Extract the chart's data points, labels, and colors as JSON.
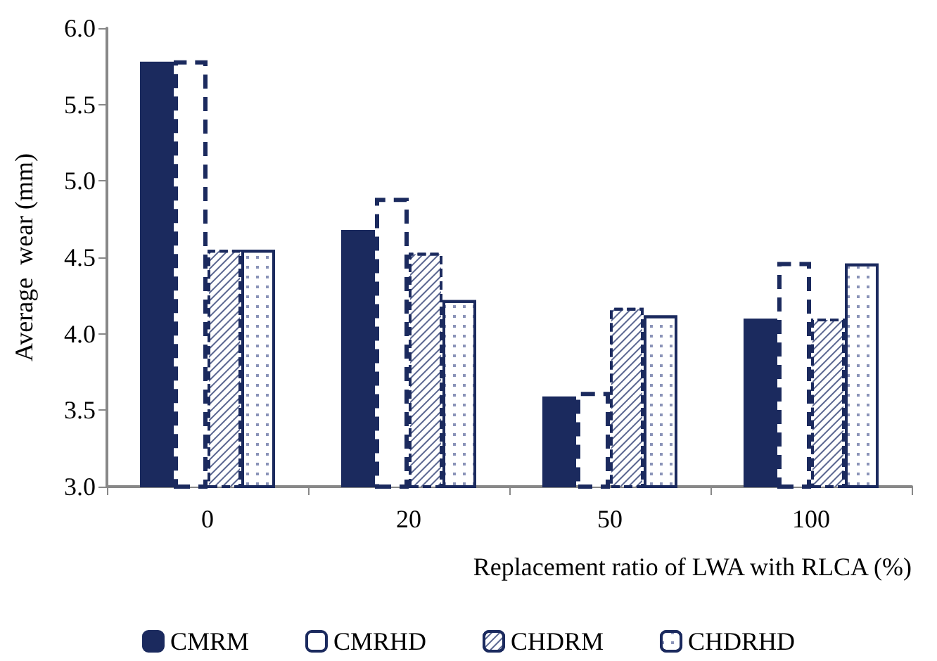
{
  "chart_data": {
    "type": "bar",
    "xlabel": "Replacement ratio of LWA with RLCA (%)",
    "ylabel": "Average  wear (mm)",
    "categories": [
      "0",
      "20",
      "50",
      "100"
    ],
    "series": [
      {
        "name": "CMRM",
        "color": "#1b2a5e",
        "values": [
          5.78,
          4.68,
          3.59,
          4.1
        ]
      },
      {
        "name": "CMRHD",
        "color": "#1b2a5e",
        "values": [
          5.79,
          4.89,
          3.62,
          4.47
        ]
      },
      {
        "name": "CHDRM",
        "color": "#1b2a5e",
        "values": [
          4.55,
          4.53,
          4.17,
          4.1
        ]
      },
      {
        "name": "CHDRHD",
        "color": "#1b2a5e",
        "values": [
          4.55,
          4.22,
          4.12,
          4.46
        ]
      }
    ],
    "ylim": [
      3.0,
      6.0
    ],
    "yticks": [
      {
        "value": 3,
        "label": "3.0"
      },
      3.5,
      {
        "value": 4,
        "label": "4.0"
      },
      4.5,
      {
        "value": 5,
        "label": "5.0"
      },
      5.5,
      {
        "value": 6,
        "label": "6.0"
      }
    ],
    "grid": false,
    "legend": "bottom"
  }
}
